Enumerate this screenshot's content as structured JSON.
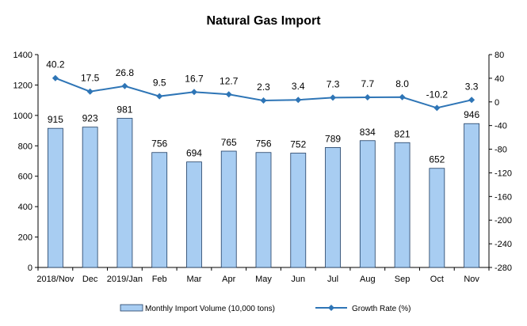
{
  "chart_data": {
    "type": "bar",
    "title": "Natural Gas Import",
    "categories": [
      "2018/Nov",
      "Dec",
      "2019/Jan",
      "Feb",
      "Mar",
      "Apr",
      "May",
      "Jun",
      "Jul",
      "Aug",
      "Sep",
      "Oct",
      "Nov"
    ],
    "series": [
      {
        "name": "Monthly Import Volume (10,000 tons)",
        "type": "bar",
        "axis": "left",
        "color": "#a8cdf2",
        "values": [
          915,
          923,
          981,
          756,
          694,
          765,
          756,
          752,
          789,
          834,
          821,
          652,
          946
        ]
      },
      {
        "name": "Growth Rate (%)",
        "type": "line",
        "axis": "right",
        "color": "#2e75b6",
        "values": [
          40.2,
          17.5,
          26.8,
          9.5,
          16.7,
          12.7,
          2.3,
          3.4,
          7.3,
          7.7,
          8.0,
          -10.2,
          3.3
        ]
      }
    ],
    "y_left": {
      "lim": [
        0,
        1400
      ],
      "ticks": [
        0,
        200,
        400,
        600,
        800,
        1000,
        1200,
        1400
      ]
    },
    "y_right": {
      "lim": [
        -280,
        80
      ],
      "ticks": [
        80,
        40,
        0,
        -40,
        -80,
        -120,
        -160,
        -200,
        -240,
        -280
      ]
    },
    "grid": false,
    "legend": "bottom"
  }
}
